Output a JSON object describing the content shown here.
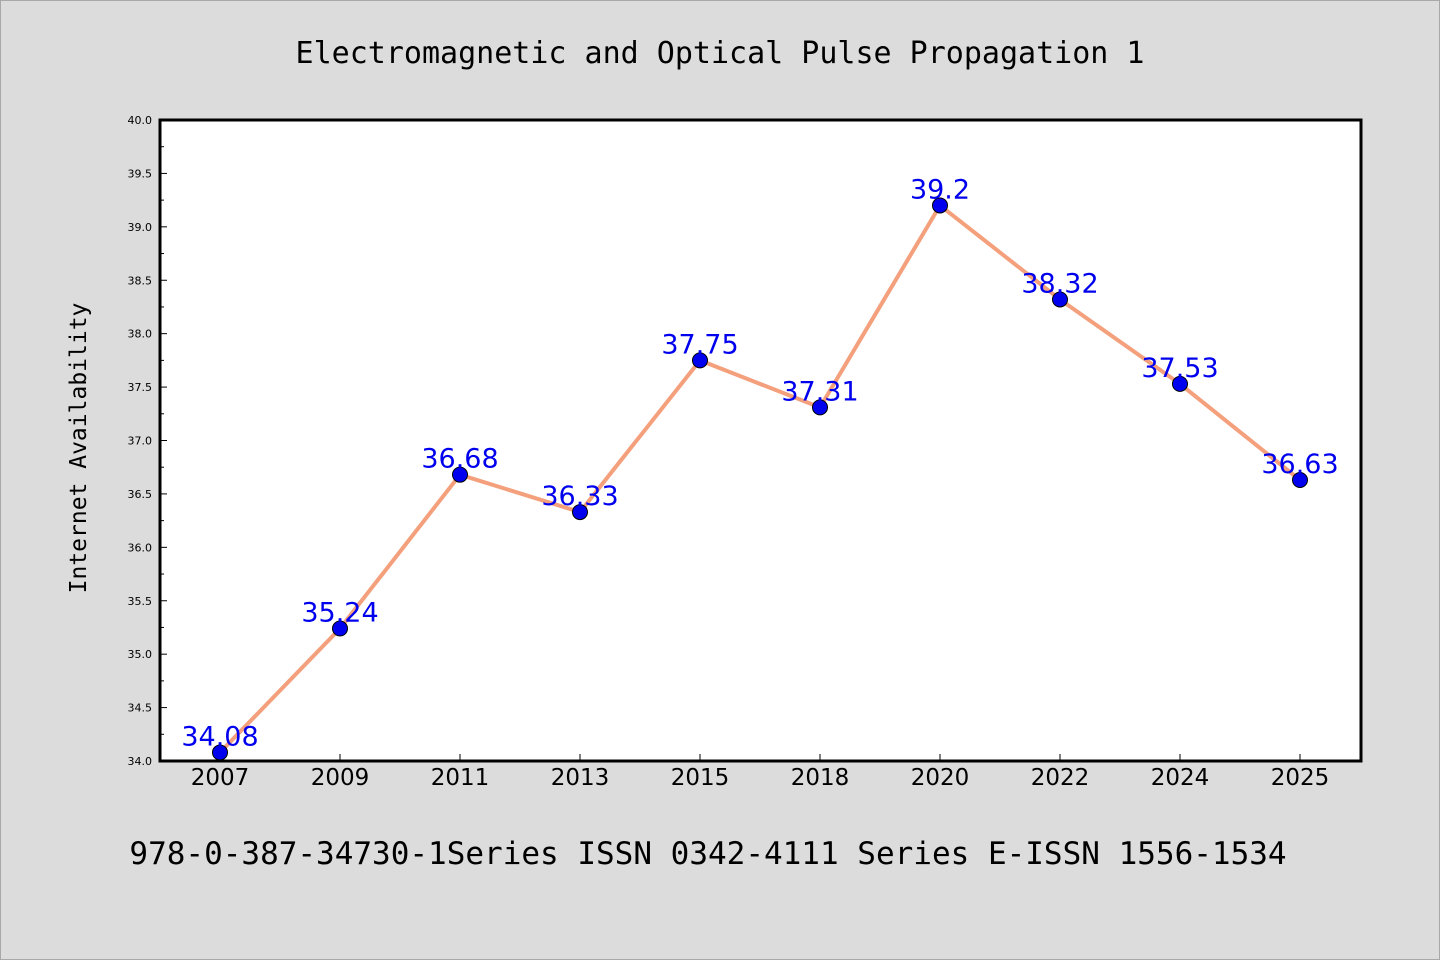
{
  "chart_data": {
    "type": "line",
    "title": "Electromagnetic and Optical Pulse Propagation 1",
    "xlabel": "",
    "ylabel": "Internet Availability",
    "categories": [
      "2007",
      "2009",
      "2011",
      "2013",
      "2015",
      "2018",
      "2020",
      "2022",
      "2024",
      "2025"
    ],
    "series": [
      {
        "values": [
          34.08,
          35.24,
          36.68,
          36.33,
          37.75,
          37.31,
          39.2,
          38.32,
          37.53,
          36.63
        ],
        "data_labels": [
          "34.08",
          "35.24",
          "36.68",
          "36.33",
          "37.75",
          "37.31",
          "39.2",
          "38.32",
          "37.53",
          "36.63"
        ]
      }
    ],
    "ylim": [
      34.0,
      40.0
    ],
    "yticks": [
      "34.0",
      "34.5",
      "35.0",
      "35.5",
      "36.0",
      "36.5",
      "37.0",
      "37.5",
      "38.0",
      "38.5",
      "39.0",
      "39.5",
      "40.0"
    ],
    "grid": false,
    "legend": "none",
    "line_color": "#f4a07c",
    "marker_color": "#0000ee",
    "label_color": "#0000ee"
  },
  "footer": "978-0-387-34730-1Series ISSN 0342-4111 Series E-ISSN 1556-1534"
}
